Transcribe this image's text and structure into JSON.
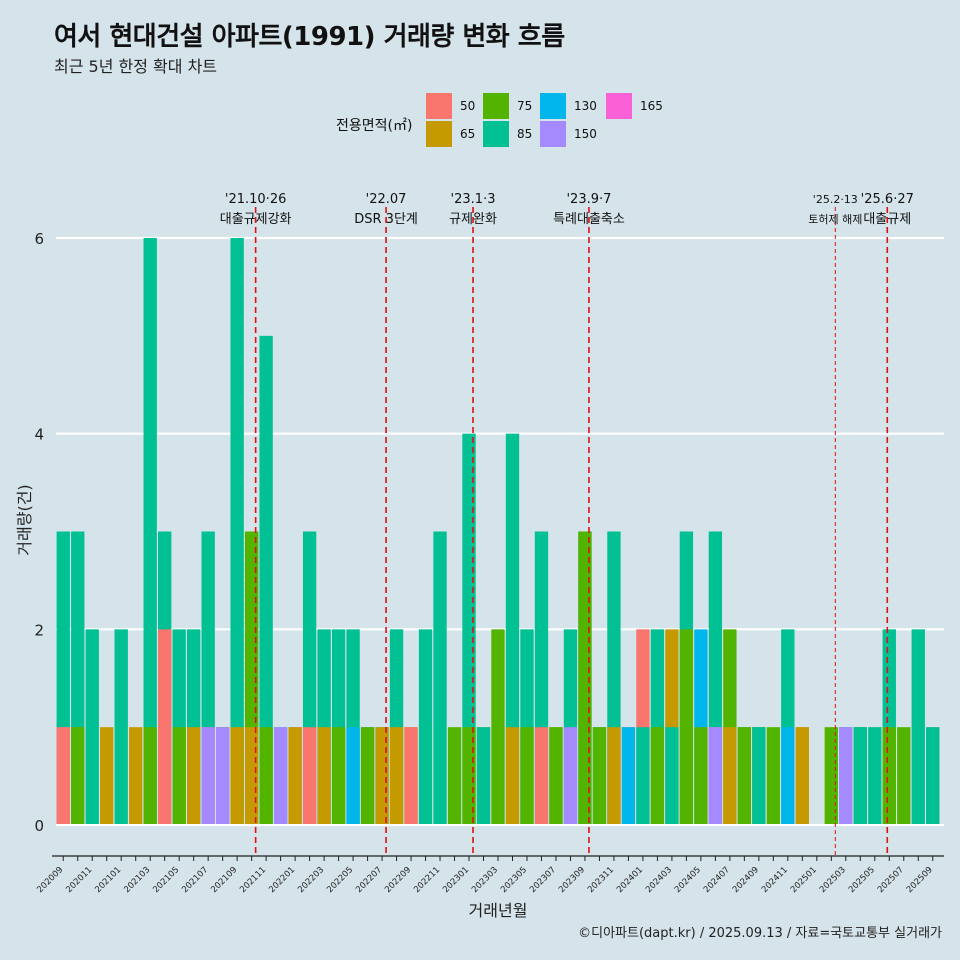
{
  "header": {
    "title": "여서 현대건설 아파트(1991) 거래량 변화 흐름",
    "subtitle": "최근 5년 한정 확대 차트"
  },
  "caption": "©디아파트(dapt.kr) / 2025.09.13 / 자료=국토교통부 실거래가",
  "legend": {
    "title": "전용면적(㎡)",
    "items": [
      {
        "label": "50",
        "color": "#f8766d"
      },
      {
        "label": "65",
        "color": "#c49a00"
      },
      {
        "label": "75",
        "color": "#53b400"
      },
      {
        "label": "85",
        "color": "#00c094"
      },
      {
        "label": "130",
        "color": "#00b6eb"
      },
      {
        "label": "150",
        "color": "#a58aff"
      },
      {
        "label": "165",
        "color": "#fb61d7"
      }
    ]
  },
  "chart_data": {
    "type": "bar",
    "stacked": false,
    "xlabel": "거래년월",
    "ylabel": "거래량(건)",
    "ylim": [
      0,
      6.3
    ],
    "yticks": [
      0,
      2,
      4,
      6
    ],
    "grid": "horizontal",
    "legend_position": "top",
    "x_tick_labels": [
      "202009",
      "202010",
      "202011",
      "202012",
      "202101",
      "202102",
      "202103",
      "202104",
      "202105",
      "202106",
      "202107",
      "202108",
      "202109",
      "202110",
      "202111",
      "202112",
      "202201",
      "202202",
      "202203",
      "202204",
      "202205",
      "202206",
      "202207",
      "202208",
      "202209",
      "202210",
      "202211",
      "202212",
      "202301",
      "202302",
      "202303",
      "202304",
      "202305",
      "202306",
      "202307",
      "202308",
      "202309",
      "202310",
      "202311",
      "202312",
      "202401",
      "202402",
      "202403",
      "202404",
      "202405",
      "202406",
      "202407",
      "202408",
      "202409",
      "202410",
      "202411",
      "202412",
      "202501",
      "202502",
      "202503",
      "202504",
      "202505",
      "202506",
      "202507",
      "202508",
      "202509"
    ],
    "bars": [
      {
        "month": "202009",
        "area": "85",
        "value": 3
      },
      {
        "month": "202009",
        "area": "150",
        "value": 1
      },
      {
        "month": "202009",
        "area": "50",
        "value": 1
      },
      {
        "month": "202010",
        "area": "85",
        "value": 3
      },
      {
        "month": "202010",
        "area": "65",
        "value": 1
      },
      {
        "month": "202010",
        "area": "75",
        "value": 1
      },
      {
        "month": "202011",
        "area": "85",
        "value": 2
      },
      {
        "month": "202012",
        "area": "65",
        "value": 1
      },
      {
        "month": "202101",
        "area": "85",
        "value": 2
      },
      {
        "month": "202102",
        "area": "65",
        "value": 1
      },
      {
        "month": "202103",
        "area": "85",
        "value": 6
      },
      {
        "month": "202103",
        "area": "75",
        "value": 1
      },
      {
        "month": "202104",
        "area": "85",
        "value": 3
      },
      {
        "month": "202104",
        "area": "50",
        "value": 2
      },
      {
        "month": "202105",
        "area": "85",
        "value": 2
      },
      {
        "month": "202105",
        "area": "75",
        "value": 1
      },
      {
        "month": "202106",
        "area": "85",
        "value": 2
      },
      {
        "month": "202106",
        "area": "65",
        "value": 1
      },
      {
        "month": "202107",
        "area": "85",
        "value": 3
      },
      {
        "month": "202107",
        "area": "50",
        "value": 1
      },
      {
        "month": "202107",
        "area": "150",
        "value": 1
      },
      {
        "month": "202108",
        "area": "65",
        "value": 1
      },
      {
        "month": "202108",
        "area": "75",
        "value": 1
      },
      {
        "month": "202108",
        "area": "150",
        "value": 1
      },
      {
        "month": "202109",
        "area": "85",
        "value": 6
      },
      {
        "month": "202109",
        "area": "65",
        "value": 1
      },
      {
        "month": "202110",
        "area": "85",
        "value": 3
      },
      {
        "month": "202110",
        "area": "75",
        "value": 3
      },
      {
        "month": "202110",
        "area": "65",
        "value": 1
      },
      {
        "month": "202111",
        "area": "85",
        "value": 5
      },
      {
        "month": "202111",
        "area": "75",
        "value": 1
      },
      {
        "month": "202112",
        "area": "85",
        "value": 1
      },
      {
        "month": "202112",
        "area": "150",
        "value": 1
      },
      {
        "month": "202201",
        "area": "150",
        "value": 1
      },
      {
        "month": "202201",
        "area": "65",
        "value": 1
      },
      {
        "month": "202202",
        "area": "85",
        "value": 3
      },
      {
        "month": "202202",
        "area": "50",
        "value": 1
      },
      {
        "month": "202203",
        "area": "65",
        "value": 1
      },
      {
        "month": "202203",
        "area": "85",
        "value": 2
      },
      {
        "month": "202204",
        "area": "85",
        "value": 2
      },
      {
        "month": "202204",
        "area": "75",
        "value": 1
      },
      {
        "month": "202205",
        "area": "85",
        "value": 2
      },
      {
        "month": "202205",
        "area": "130",
        "value": 1
      },
      {
        "month": "202206",
        "area": "130",
        "value": 1
      },
      {
        "month": "202206",
        "area": "75",
        "value": 1
      },
      {
        "month": "202207",
        "area": "85",
        "value": 1
      },
      {
        "month": "202207",
        "area": "65",
        "value": 1
      },
      {
        "month": "202208",
        "area": "85",
        "value": 2
      },
      {
        "month": "202208",
        "area": "65",
        "value": 1
      },
      {
        "month": "202209",
        "area": "65",
        "value": 1
      },
      {
        "month": "202209",
        "area": "50",
        "value": 1
      },
      {
        "month": "202210",
        "area": "85",
        "value": 2
      },
      {
        "month": "202211",
        "area": "85",
        "value": 3
      },
      {
        "month": "202212",
        "area": "75",
        "value": 1
      },
      {
        "month": "202301",
        "area": "85",
        "value": 4
      },
      {
        "month": "202301",
        "area": "75",
        "value": 1
      },
      {
        "month": "202302",
        "area": "65",
        "value": 1
      },
      {
        "month": "202302",
        "area": "85",
        "value": 1
      },
      {
        "month": "202303",
        "area": "75",
        "value": 2
      },
      {
        "month": "202304",
        "area": "65",
        "value": 1
      },
      {
        "month": "202304",
        "area": "85",
        "value": 4
      },
      {
        "month": "202305",
        "area": "75",
        "value": 1
      },
      {
        "month": "202305",
        "area": "85",
        "value": 2
      },
      {
        "month": "202306",
        "area": "50",
        "value": 1
      },
      {
        "month": "202306",
        "area": "85",
        "value": 3
      },
      {
        "month": "202307",
        "area": "65",
        "value": 1
      },
      {
        "month": "202307",
        "area": "75",
        "value": 1
      },
      {
        "month": "202308",
        "area": "85",
        "value": 2
      },
      {
        "month": "202308",
        "area": "150",
        "value": 1
      },
      {
        "month": "202309",
        "area": "85",
        "value": 3
      },
      {
        "month": "202309",
        "area": "75",
        "value": 3
      },
      {
        "month": "202310",
        "area": "85",
        "value": 1
      },
      {
        "month": "202310",
        "area": "75",
        "value": 1
      },
      {
        "month": "202311",
        "area": "65",
        "value": 1
      },
      {
        "month": "202311",
        "area": "85",
        "value": 3
      },
      {
        "month": "202312",
        "area": "50",
        "value": 1
      },
      {
        "month": "202312",
        "area": "130",
        "value": 1
      },
      {
        "month": "202401",
        "area": "50",
        "value": 2
      },
      {
        "month": "202401",
        "area": "85",
        "value": 1
      },
      {
        "month": "202402",
        "area": "75",
        "value": 1
      },
      {
        "month": "202402",
        "area": "85",
        "value": 2
      },
      {
        "month": "202403",
        "area": "65",
        "value": 2
      },
      {
        "month": "202403",
        "area": "85",
        "value": 1
      },
      {
        "month": "202404",
        "area": "75",
        "value": 2
      },
      {
        "month": "202404",
        "area": "85",
        "value": 3
      },
      {
        "month": "202405",
        "area": "130",
        "value": 2
      },
      {
        "month": "202405",
        "area": "75",
        "value": 1
      },
      {
        "month": "202406",
        "area": "85",
        "value": 3
      },
      {
        "month": "202406",
        "area": "50",
        "value": 1
      },
      {
        "month": "202406",
        "area": "150",
        "value": 1
      },
      {
        "month": "202407",
        "area": "65",
        "value": 1
      },
      {
        "month": "202407",
        "area": "75",
        "value": 2
      },
      {
        "month": "202408",
        "area": "85",
        "value": 1
      },
      {
        "month": "202408",
        "area": "75",
        "value": 1
      },
      {
        "month": "202409",
        "area": "75",
        "value": 1
      },
      {
        "month": "202409",
        "area": "85",
        "value": 1
      },
      {
        "month": "202410",
        "area": "75",
        "value": 1
      },
      {
        "month": "202411",
        "area": "85",
        "value": 2
      },
      {
        "month": "202411",
        "area": "130",
        "value": 1
      },
      {
        "month": "202412",
        "area": "50",
        "value": 1
      },
      {
        "month": "202412",
        "area": "65",
        "value": 1
      },
      {
        "month": "202502",
        "area": "75",
        "value": 1
      },
      {
        "month": "202503",
        "area": "85",
        "value": 1
      },
      {
        "month": "202503",
        "area": "150",
        "value": 1
      },
      {
        "month": "202504",
        "area": "75",
        "value": 1
      },
      {
        "month": "202504",
        "area": "85",
        "value": 1
      },
      {
        "month": "202505",
        "area": "85",
        "value": 1
      },
      {
        "month": "202506",
        "area": "85",
        "value": 2
      },
      {
        "month": "202506",
        "area": "75",
        "value": 1
      },
      {
        "month": "202507",
        "area": "75",
        "value": 1
      },
      {
        "month": "202508",
        "area": "85",
        "value": 2
      },
      {
        "month": "202509",
        "area": "50",
        "value": 1
      },
      {
        "month": "202509",
        "area": "85",
        "value": 1
      }
    ],
    "events": [
      {
        "month": "202110",
        "date": "'21.10·26",
        "label": "대출규제강화",
        "style": "solid-dash"
      },
      {
        "month": "202207",
        "date": "'22.07",
        "label": "DSR 3단계",
        "style": "solid-dash"
      },
      {
        "month": "202301",
        "date": "'23.1·3",
        "label": "규제완화",
        "style": "solid-dash"
      },
      {
        "month": "202309",
        "date": "'23.9·7",
        "label": "특례대출축소",
        "style": "solid-dash"
      },
      {
        "month": "202502",
        "date": "'25.2·13",
        "label": "토허제 해제",
        "style": "thin-dash"
      },
      {
        "month": "202506",
        "date": "'25.6·27",
        "label": "대출규제",
        "style": "solid-dash"
      }
    ]
  }
}
